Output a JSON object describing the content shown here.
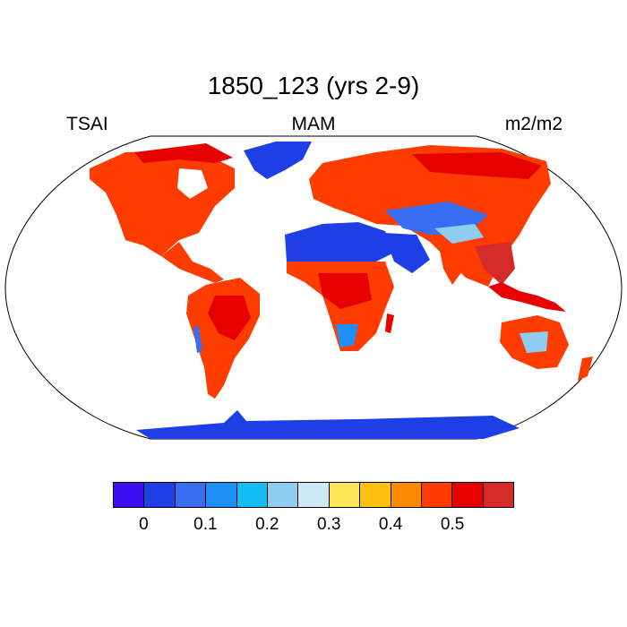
{
  "header": {
    "title": "1850_123 (yrs 2-9)",
    "left": "TSAI",
    "center": "MAM",
    "right": "m2/m2"
  },
  "colorbar": {
    "colors": [
      "#3d10f2",
      "#1f3fe6",
      "#3a6ef0",
      "#1e90f5",
      "#14bdf5",
      "#8ecdf0",
      "#cfe8f5",
      "#fde65a",
      "#fdbf10",
      "#fd8a00",
      "#ff3c00",
      "#e60000",
      "#d42a2a"
    ],
    "labels": [
      "0",
      "0.1",
      "0.2",
      "0.3",
      "0.4",
      "0.5"
    ]
  },
  "legend_colors": {
    "land_high": "#ff3c00",
    "ice": "#1f3fe6",
    "desert": "#1f3fe6"
  }
}
